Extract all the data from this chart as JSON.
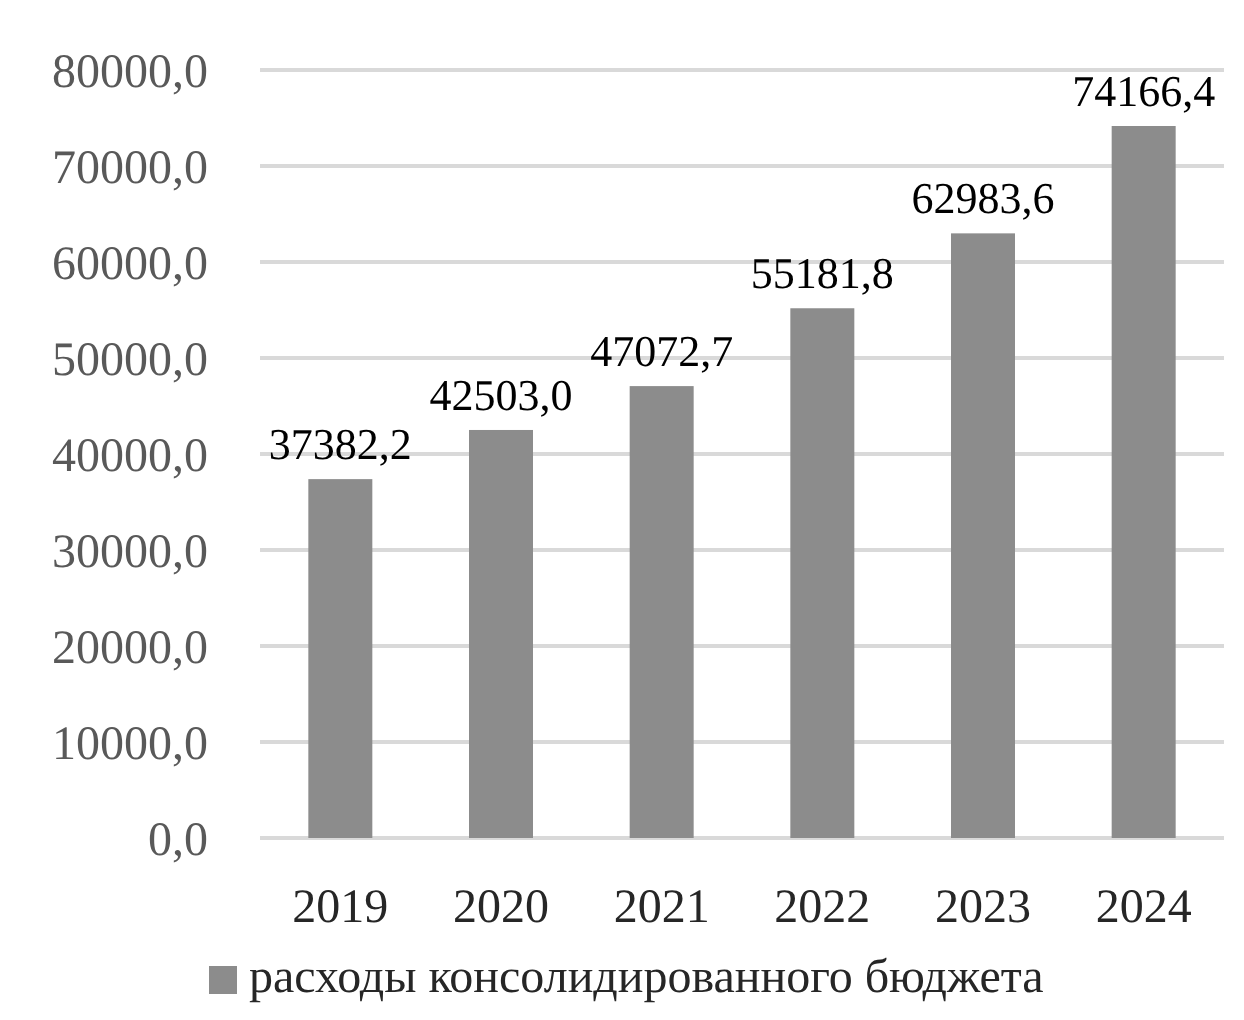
{
  "chart_data": {
    "type": "bar",
    "categories": [
      "2019",
      "2020",
      "2021",
      "2022",
      "2023",
      "2024"
    ],
    "series": [
      {
        "name": "расходы консолидированного бюджета",
        "color": "#8c8c8c",
        "values": [
          37382.2,
          42503.0,
          47072.7,
          55181.8,
          62983.6,
          74166.4
        ],
        "value_labels": [
          "37382,2",
          "42503,0",
          "47072,7",
          "55181,8",
          "62983,6",
          "74166,4"
        ]
      }
    ],
    "ylim": [
      0,
      80000
    ],
    "yticks": [
      {
        "value": 0,
        "label": "0,0"
      },
      {
        "value": 10000,
        "label": "10000,0"
      },
      {
        "value": 20000,
        "label": "20000,0"
      },
      {
        "value": 30000,
        "label": "30000,0"
      },
      {
        "value": 40000,
        "label": "40000,0"
      },
      {
        "value": 50000,
        "label": "50000,0"
      },
      {
        "value": 60000,
        "label": "60000,0"
      },
      {
        "value": 70000,
        "label": "70000,0"
      },
      {
        "value": 80000,
        "label": "80000,0"
      }
    ],
    "grid": "y",
    "legend": "bottom"
  }
}
